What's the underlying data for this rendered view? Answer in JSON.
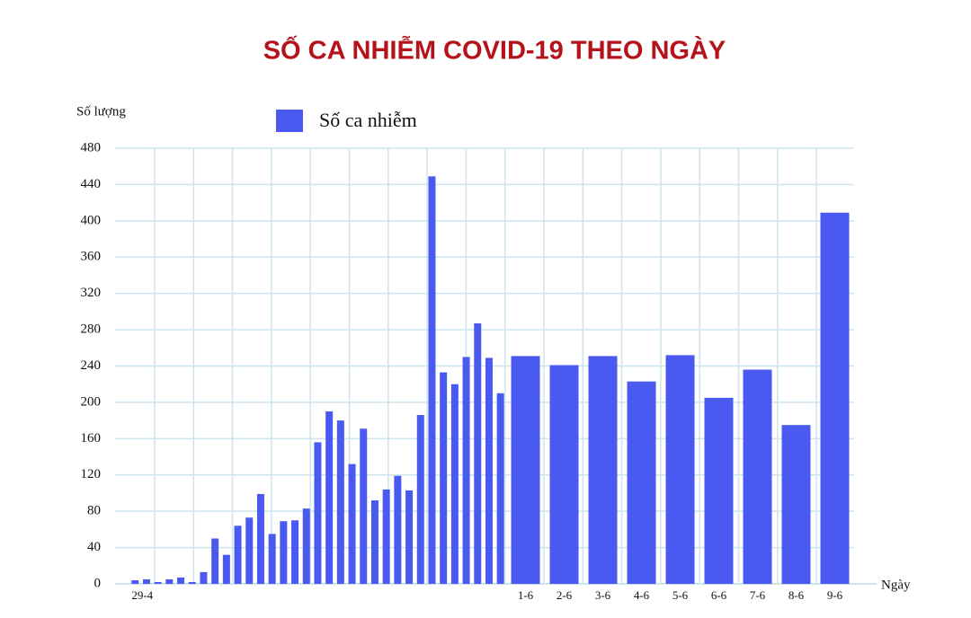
{
  "chart_data": {
    "type": "bar",
    "title": "SỐ CA NHIỄM COVID-19 THEO NGÀY",
    "y_label": "Số lượng",
    "x_label": "Ngày",
    "categories": [
      "29-4",
      null,
      null,
      null,
      null,
      null,
      null,
      null,
      null,
      null,
      null,
      null,
      null,
      null,
      null,
      null,
      null,
      null,
      null,
      null,
      null,
      null,
      null,
      null,
      null,
      null,
      null,
      null,
      null,
      null,
      null,
      null,
      null,
      "1-6",
      "2-6",
      "3-6",
      "4-6",
      "5-6",
      "6-6",
      "7-6",
      "8-6",
      "9-6"
    ],
    "series": [
      {
        "name": "Số ca nhiễm",
        "color": "#4a5af0",
        "values": [
          4,
          5,
          2,
          5,
          7,
          2,
          13,
          50,
          32,
          64,
          73,
          99,
          55,
          69,
          70,
          83,
          156,
          190,
          180,
          132,
          171,
          92,
          104,
          119,
          103,
          186,
          449,
          233,
          220,
          250,
          287,
          249,
          210,
          251,
          241,
          251,
          223,
          252,
          205,
          236,
          175,
          409
        ]
      }
    ],
    "ylim": [
      0,
      480
    ],
    "yticks": [
      0,
      40,
      80,
      120,
      160,
      200,
      240,
      280,
      320,
      360,
      400,
      440,
      480
    ],
    "grid": true
  }
}
